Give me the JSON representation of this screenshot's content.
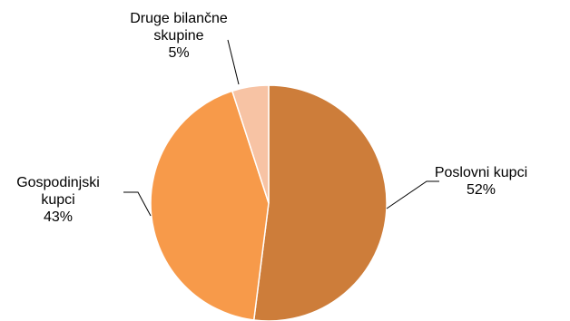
{
  "chart_data": {
    "type": "pie",
    "title": "",
    "slices": [
      {
        "label": "Poslovni kupci",
        "label_lines": [
          "Poslovni kupci"
        ],
        "value": 52,
        "value_text": "52%",
        "color": "#cd7d3a"
      },
      {
        "label": "Gospodinjski kupci",
        "label_lines": [
          "Gospodinjski",
          "kupci"
        ],
        "value": 43,
        "value_text": "43%",
        "color": "#f79a4a"
      },
      {
        "label": "Druge bilančne skupine",
        "label_lines": [
          "Druge bilančne",
          "skupine"
        ],
        "value": 5,
        "value_text": "5%",
        "color": "#f7c3a4"
      }
    ],
    "start_angle_deg": 0,
    "direction": "clockwise",
    "legend": "none",
    "labels_outside_with_leader_lines": true
  }
}
